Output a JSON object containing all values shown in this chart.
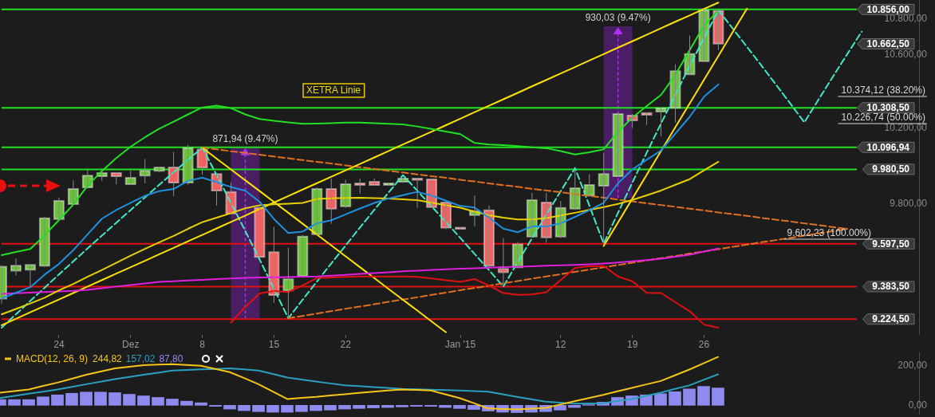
{
  "chart_data": [
    {
      "type": "candlestick",
      "log": true,
      "grid": false,
      "legend": false,
      "categories": [
        null,
        null,
        null,
        null,
        "24",
        null,
        null,
        null,
        null,
        "Dez",
        null,
        null,
        null,
        null,
        "8",
        null,
        null,
        null,
        null,
        "15",
        null,
        null,
        null,
        null,
        "22",
        null,
        null,
        null,
        null,
        null,
        null,
        null,
        "Jan '15",
        null,
        null,
        null,
        null,
        null,
        null,
        "12",
        null,
        null,
        null,
        null,
        "19",
        null,
        null,
        null,
        null,
        "26",
        null,
        null,
        null,
        null,
        null,
        null,
        null,
        null,
        null,
        null,
        null,
        null,
        null,
        null,
        null
      ],
      "ylim": [
        9150,
        10910
      ],
      "yticks": [
        {
          "value": 9800,
          "label": "9.800,00"
        },
        {
          "value": 10200,
          "label": "10.200,00"
        },
        {
          "value": 10600,
          "label": "10.600,00"
        },
        {
          "value": 10800,
          "label": "10.800,00"
        }
      ],
      "ohlc": [
        [
          9325,
          9490,
          9300,
          9482
        ],
        [
          9463,
          9523,
          9439,
          9487
        ],
        [
          9467,
          9495,
          9384,
          9491
        ],
        [
          9487,
          9735,
          9480,
          9727
        ],
        [
          9723,
          9833,
          9720,
          9816
        ],
        [
          9800,
          9923,
          9795,
          9878
        ],
        [
          9886,
          9985,
          9880,
          9948
        ],
        [
          9944,
          9985,
          9920,
          9961
        ],
        [
          9961,
          9965,
          9903,
          9944
        ],
        [
          9903,
          9973,
          9899,
          9936
        ],
        [
          9948,
          10035,
          9907,
          9973
        ],
        [
          9973,
          9994,
          9965,
          9990
        ],
        [
          9990,
          10072,
          9841,
          9911
        ],
        [
          9911,
          10110,
          9899,
          10093
        ],
        [
          10085,
          10101,
          9952,
          9990
        ],
        [
          9956,
          9961,
          9792,
          9870
        ],
        [
          9862,
          9911,
          9745,
          9751
        ],
        null,
        [
          9780,
          9790,
          9525,
          9531
        ],
        [
          9555,
          9683,
          9304,
          9342
        ],
        [
          9365,
          9578,
          9229,
          9420
        ],
        [
          9436,
          9642,
          9430,
          9634
        ],
        [
          9646,
          9886,
          9640,
          9878
        ],
        [
          9878,
          9932,
          9699,
          9776
        ],
        [
          9788,
          9927,
          9780,
          9903
        ],
        [
          9907,
          9932,
          9854,
          9899
        ],
        [
          9915,
          9932,
          9895,
          9899
        ],
        [
          9899,
          9910,
          9895,
          9907
        ],
        [
          9915,
          9935,
          9910,
          9932
        ],
        [
          9932,
          9935,
          9780,
          9928
        ],
        [
          9928,
          9932,
          9780,
          9784
        ],
        [
          9808,
          9812,
          9671,
          9679
        ],
        [
          9679,
          9680,
          9671,
          9675
        ],
        [
          9743,
          9845,
          9687,
          9764
        ],
        [
          9768,
          9792,
          9480,
          9487
        ],
        [
          9471,
          9626,
          9384,
          9455
        ],
        [
          9479,
          9606,
          9475,
          9594
        ],
        [
          9634,
          9858,
          9630,
          9820
        ],
        [
          9808,
          9858,
          9602,
          9630
        ],
        [
          9634,
          9816,
          9626,
          9780
        ],
        [
          9776,
          9973,
          9770,
          9882
        ],
        [
          9845,
          9956,
          9838,
          9899
        ],
        [
          9895,
          10068,
          9598,
          9956
        ],
        [
          9944,
          10280,
          9940,
          10275
        ],
        [
          10267,
          10275,
          10200,
          10241
        ],
        [
          10280,
          10284,
          10216,
          10271
        ],
        [
          10288,
          10310,
          10155,
          10305
        ],
        [
          10309,
          10547,
          10229,
          10509
        ],
        [
          10492,
          10708,
          10488,
          10605
        ],
        [
          10565,
          10856,
          10561,
          10851
        ],
        [
          10847,
          10856,
          10627,
          10662.5
        ],
        null,
        null,
        null,
        null,
        null,
        null,
        null,
        null,
        null,
        null,
        null,
        null,
        null,
        null
      ],
      "colors": [
        "#6cc03c",
        "#6cc03c",
        "#6cc03c",
        "#6cc03c",
        "#6cc03c",
        "#6cc03c",
        "#6cc03c",
        "#6cc03c",
        "#f06262",
        "#6cc03c",
        "#6cc03c",
        "#6cc03c",
        "#f06262",
        "#6cc03c",
        "#f06262",
        "#f06262",
        "#f06262",
        null,
        "#f06262",
        "#f06262",
        "#6cc03c",
        "#6cc03c",
        "#6cc03c",
        "#f06262",
        "#6cc03c",
        "#f06262",
        "#f06262",
        "#6cc03c",
        "#6cc03c",
        "#f06262",
        "#f06262",
        "#f06262",
        "#f06262",
        "#6cc03c",
        "#f06262",
        "#f06262",
        "#6cc03c",
        "#6cc03c",
        "#f06262",
        "#6cc03c",
        "#6cc03c",
        "#6cc03c",
        "#6cc03c",
        "#6cc03c",
        "#f06262",
        "#f06262",
        "#6cc03c",
        "#6cc03c",
        "#6cc03c",
        "#6cc03c",
        "#f06262",
        null,
        null,
        null,
        null,
        null,
        null,
        null,
        null,
        null,
        null,
        null,
        null,
        null,
        null
      ],
      "series": [
        {
          "type": "bar",
          "color": "#4a1e64",
          "base": [
            null,
            null,
            null,
            null,
            null,
            null,
            null,
            null,
            null,
            null,
            null,
            null,
            null,
            null,
            null,
            null,
            null,
            9224.5,
            null,
            null,
            null,
            null,
            null,
            null,
            null,
            null,
            null,
            null,
            null,
            null,
            null,
            null,
            null,
            null,
            null,
            null,
            null,
            null,
            null,
            null,
            null,
            null,
            null,
            9830,
            null,
            null,
            null,
            null,
            null,
            null,
            null,
            null,
            null,
            null,
            null,
            null,
            null,
            null,
            null,
            null,
            null,
            null,
            null,
            null,
            null
          ],
          "values": [
            null,
            null,
            null,
            null,
            null,
            null,
            null,
            null,
            null,
            null,
            null,
            null,
            null,
            null,
            null,
            null,
            null,
            871.94,
            null,
            null,
            null,
            null,
            null,
            null,
            null,
            null,
            null,
            null,
            null,
            null,
            null,
            null,
            null,
            null,
            null,
            null,
            null,
            null,
            null,
            null,
            null,
            null,
            null,
            930.03,
            null,
            null,
            null,
            null,
            null,
            null,
            null,
            null,
            null,
            null,
            null,
            null,
            null,
            null,
            null,
            null,
            null,
            null,
            null,
            null,
            null
          ],
          "value_labels": [
            null,
            null,
            null,
            null,
            null,
            null,
            null,
            null,
            null,
            null,
            null,
            null,
            null,
            null,
            null,
            null,
            null,
            "871,94 (9.47%)",
            null,
            null,
            null,
            null,
            null,
            null,
            null,
            null,
            null,
            null,
            null,
            null,
            null,
            null,
            null,
            null,
            null,
            null,
            null,
            null,
            null,
            null,
            null,
            null,
            null,
            "930,03 (9.47%)",
            null,
            null,
            null,
            null,
            null,
            null,
            null,
            null,
            null,
            null,
            null,
            null,
            null,
            null,
            null,
            null,
            null,
            null,
            null,
            null,
            null
          ]
        },
        {
          "type": "line",
          "color": "#22e022",
          "values": [
            9540,
            9556,
            9571,
            9640,
            9718,
            9797,
            9895,
            9972,
            10040,
            10100,
            10150,
            10196,
            10234,
            10273,
            10311,
            10320,
            10307,
            10273,
            10248,
            10239,
            10230,
            10222,
            10224,
            10226,
            10229,
            10229,
            10226,
            10222,
            10219,
            10208,
            10195,
            10181,
            10167,
            10120,
            10112,
            10108,
            10103,
            10097,
            10092,
            10077,
            10059,
            10070,
            10086,
            10180,
            10256,
            10318,
            10379,
            10489,
            10627,
            10763,
            10851,
            null,
            null,
            null,
            null,
            null,
            null,
            null,
            null,
            null,
            null,
            null,
            null,
            null,
            null
          ]
        },
        {
          "type": "line",
          "color": "#e01010",
          "values": [
            null,
            null,
            null,
            null,
            null,
            null,
            null,
            null,
            null,
            null,
            null,
            null,
            null,
            null,
            null,
            null,
            9207,
            9284,
            9350,
            9362,
            9357,
            9390,
            9426,
            9429,
            9432,
            9434,
            9434,
            9434,
            9434,
            9432,
            9424,
            9415,
            9407,
            9421,
            9389,
            9352,
            9343,
            9345,
            9356,
            9416,
            9476,
            9484,
            9486,
            9434,
            9410,
            9353,
            9352,
            9307,
            9263,
            9198,
            9183,
            null,
            null,
            null,
            null,
            null,
            null,
            null,
            null,
            null,
            null,
            null,
            null,
            null,
            null
          ]
        },
        {
          "type": "line",
          "color": "#1e90e0",
          "values": [
            9325,
            9353,
            9381,
            9443,
            9496,
            9565,
            9645,
            9725,
            9769,
            9806,
            9842,
            9867,
            9878,
            9920,
            9937,
            9913,
            9888,
            9869,
            9812,
            9723,
            9652,
            9659,
            9701,
            9717,
            9747,
            9777,
            9806,
            9829,
            9846,
            9863,
            9844,
            9817,
            9790,
            9782,
            9730,
            9674,
            9656,
            9686,
            9685,
            9701,
            9734,
            9768,
            9806,
            9908,
            9980,
            10031,
            10080,
            10170,
            10260,
            10369,
            10436,
            null,
            null,
            null,
            null,
            null,
            null,
            null,
            null,
            null,
            null,
            null,
            null,
            null,
            null
          ]
        },
        {
          "type": "line",
          "color": "#e8d000",
          "values": [
            9248,
            9274,
            9301,
            9329,
            9365,
            9397,
            9432,
            9466,
            9502,
            9538,
            9572,
            9605,
            9637,
            9673,
            9707,
            9730,
            9753,
            9778,
            9794,
            9799,
            9802,
            9806,
            9826,
            9829,
            9832,
            9833,
            9831,
            9828,
            9824,
            9820,
            9807,
            9794,
            9781,
            9761,
            9742,
            9730,
            9721,
            9721,
            9728,
            9741,
            9755,
            9770,
            9784,
            9801,
            9821,
            9845,
            9870,
            9900,
            9929,
            9975,
            10020,
            null,
            null,
            null,
            null,
            null,
            null,
            null,
            null,
            null,
            null,
            null,
            null,
            null,
            null
          ]
        },
        {
          "type": "line",
          "color": "#e020e0",
          "values": [
            9348,
            9351,
            9354,
            9357,
            9360,
            9363,
            9368,
            9376,
            9384,
            9391,
            9399,
            9407,
            9410,
            9414,
            9417,
            9421,
            9424,
            9427,
            9429,
            9430,
            9431,
            9433,
            9434,
            9438,
            9442,
            9447,
            9451,
            9455,
            9460,
            9463,
            9466,
            9469,
            9472,
            9474,
            9477,
            9480,
            9482,
            9484,
            9487,
            9489,
            9491,
            9494,
            9498,
            9503,
            9509,
            9515,
            9522,
            9532,
            9542,
            9558,
            9573,
            null,
            null,
            null,
            null,
            null,
            null,
            null,
            null,
            null,
            null,
            null,
            null,
            null,
            null
          ]
        },
        {
          "type": "line",
          "color": "#ffe000",
          "values": [
            9195,
            9226,
            9258,
            9289,
            9320,
            9352,
            9384,
            9416,
            9448,
            9480,
            9512,
            9545,
            9577,
            9610,
            9642,
            9675,
            9708,
            9741,
            9775,
            9808,
            9841,
            9875,
            9908,
            9942,
            9975,
            10009,
            10043,
            10077,
            10112,
            10146,
            10180,
            10215,
            10250,
            10285,
            10320,
            10355,
            10390,
            10426,
            10461,
            10497,
            10532,
            10568,
            10604,
            10640,
            10676,
            10712,
            10749,
            10786,
            10822,
            10859,
            10895,
            null,
            null,
            null,
            null,
            null,
            null,
            null,
            null,
            null,
            null,
            null,
            null,
            null,
            null
          ]
        },
        {
          "type": "line",
          "color": "#ffe000",
          "values": [
            null,
            null,
            null,
            null,
            null,
            null,
            null,
            null,
            null,
            null,
            null,
            null,
            null,
            null,
            null,
            null,
            null,
            null,
            null,
            null,
            null,
            null,
            null,
            null,
            null,
            null,
            null,
            null,
            null,
            null,
            null,
            null,
            null,
            null,
            null,
            null,
            null,
            null,
            null,
            null,
            null,
            null,
            9586,
            9706,
            9828,
            9952,
            10077,
            10204,
            10332,
            10462,
            10593,
            10727,
            10861,
            null,
            null,
            null,
            null,
            null,
            null,
            null,
            null,
            null,
            null,
            null,
            null
          ]
        },
        {
          "type": "line",
          "color": "#ffe000",
          "values": [
            null,
            null,
            null,
            null,
            null,
            null,
            null,
            null,
            null,
            null,
            null,
            null,
            null,
            null,
            10095,
            10037,
            9980,
            9923,
            9867,
            9811,
            9755,
            9699,
            9644,
            9589,
            9534,
            9480,
            9426,
            9372,
            9319,
            9266,
            9213,
            9161,
            null,
            null,
            null,
            null,
            null,
            null,
            null,
            null,
            null,
            null,
            null,
            null,
            null,
            null,
            null,
            null,
            null,
            null,
            null,
            null,
            null,
            null,
            null,
            null,
            null,
            null,
            null,
            null,
            null,
            null,
            null,
            null,
            null
          ]
        },
        {
          "type": "line",
          "color": "#e07020",
          "line_style": "dashed",
          "values": [
            null,
            null,
            null,
            null,
            null,
            null,
            null,
            null,
            null,
            null,
            null,
            null,
            null,
            null,
            10095,
            10086,
            10076,
            10067,
            10058,
            10048,
            10039,
            10029,
            10020,
            10011,
            10001,
            9992,
            9982,
            9973,
            9964,
            9954,
            9945,
            9936,
            9926,
            9917,
            9907,
            9898,
            9889,
            9879,
            9870,
            9861,
            9851,
            9842,
            9833,
            9823,
            9814,
            9804,
            9795,
            9786,
            9776,
            9767,
            9757,
            9748,
            9739,
            9729,
            9720,
            9711,
            9701,
            9692,
            9682,
            9673,
            null,
            null,
            null,
            null,
            null
          ]
        },
        {
          "type": "line",
          "color": "#e07020",
          "line_style": "dashed",
          "values": [
            null,
            null,
            null,
            null,
            null,
            null,
            null,
            null,
            null,
            null,
            null,
            null,
            null,
            null,
            null,
            null,
            null,
            null,
            null,
            null,
            9229,
            9240,
            9252,
            9263,
            9275,
            9286,
            9297,
            9309,
            9320,
            9331,
            9343,
            9354,
            9366,
            9377,
            9388,
            9400,
            9411,
            9423,
            9434,
            9445,
            9457,
            9468,
            9479,
            9491,
            9502,
            9514,
            9525,
            9536,
            9548,
            9559,
            9570,
            9582,
            9593,
            9605,
            9616,
            9627,
            9639,
            9650,
            9661,
            9673,
            null,
            null,
            null,
            null,
            null
          ]
        },
        {
          "type": "line",
          "color": "#40e8c8",
          "line_style": "dashed",
          "values": [
            9183,
            9248,
            9313,
            9378,
            9444,
            9509,
            9574,
            9639,
            9704,
            9769,
            9834,
            9900,
            9965,
            10030,
            10095,
            9951,
            9806,
            9662,
            9518,
            9373,
            9229,
            9319,
            9409,
            9499,
            9589,
            9680,
            9770,
            9860,
            9950,
            9869,
            9788,
            9707,
            9627,
            9546,
            9465,
            9384,
            9505,
            9625,
            9746,
            9866,
            9987,
            9793,
            9598,
            9755,
            9911,
            10068,
            10224,
            10381,
            10538,
            10694,
            10851,
            10748,
            10644,
            10541,
            10437,
            10334,
            10230,
            10355,
            10480,
            10605,
            10730,
            null,
            null,
            null,
            null
          ]
        }
      ],
      "ref_lines": [
        {
          "axis": "y",
          "value": 10856,
          "label": "10.856,00",
          "color": "#22e022"
        },
        {
          "axis": "y",
          "value": 10308.5,
          "label": "10.308,50",
          "color": "#22e022"
        },
        {
          "axis": "y",
          "value": 10096.94,
          "label": "10.096,94",
          "color": "#22e022"
        },
        {
          "axis": "y",
          "value": 9980.5,
          "label": "9.980,50",
          "color": "#22e022"
        },
        {
          "axis": "y",
          "value": 9597.5,
          "label": "9.597,50",
          "color": "#e01010"
        },
        {
          "axis": "y",
          "value": 9383.5,
          "label": "9.383,50",
          "color": "#e01010"
        },
        {
          "axis": "y",
          "value": 9224.5,
          "label": "9.224,50",
          "color": "#e01010"
        }
      ],
      "annotations": [
        "XETRA Linie",
        "10.374,12 (38.20%)",
        "10.226,74 (50.00%)",
        "9.602,23 (100.00%)",
        "10.662,50"
      ]
    },
    {
      "type": "line",
      "title": "MACD(12, 26, 9)",
      "grid": false,
      "legend": false,
      "tick_labels": "y",
      "categories": [
        null,
        null,
        null,
        null,
        null,
        null,
        null,
        null,
        null,
        null,
        null,
        null,
        null,
        null,
        null,
        null,
        null,
        null,
        null,
        null,
        null,
        null,
        null,
        null,
        null,
        null,
        null,
        null,
        null,
        null,
        null,
        null,
        null,
        null,
        null,
        null,
        null,
        null,
        null,
        null,
        null,
        null,
        null,
        null,
        null,
        null,
        null,
        null,
        null,
        null,
        null,
        null,
        null,
        null,
        null,
        null,
        null,
        null,
        null,
        null,
        null,
        null,
        null,
        null,
        null
      ],
      "ylim": [
        -43,
        268
      ],
      "yticks": [
        {
          "value": 0,
          "label": "0,00"
        },
        {
          "value": 200,
          "label": "200,00"
        }
      ],
      "series": [
        {
          "type": "line",
          "color": "#f5c518",
          "values": [
            64,
            72,
            80,
            98,
            115,
            135,
            155,
            171,
            187,
            195,
            203,
            206,
            208,
            204,
            200,
            184,
            168,
            138,
            107,
            70,
            32,
            38,
            43,
            50,
            56,
            63,
            69,
            75,
            80,
            78,
            75,
            56,
            37,
            11,
            -16,
            -19,
            -21,
            -17,
            -13,
            4,
            21,
            37,
            53,
            71,
            88,
            106,
            123,
            152,
            181,
            213,
            245,
            null,
            null,
            null,
            null,
            null,
            null,
            null,
            null,
            null,
            null,
            null,
            null,
            null,
            null
          ]
        },
        {
          "type": "line",
          "color": "#2a9fc0",
          "values": [
            37,
            48,
            59,
            69,
            80,
            93,
            107,
            120,
            133,
            144,
            155,
            165,
            176,
            179,
            182,
            184,
            187,
            182,
            176,
            159,
            141,
            131,
            121,
            111,
            101,
            97,
            92,
            88,
            83,
            81,
            79,
            77,
            75,
            72,
            69,
            56,
            43,
            31,
            19,
            14,
            8,
            10,
            11,
            22,
            32,
            48,
            64,
            83,
            101,
            129,
            157,
            null,
            null,
            null,
            null,
            null,
            null,
            null,
            null,
            null,
            null,
            null,
            null,
            null,
            null
          ]
        },
        {
          "type": "bar",
          "color": "#8f8af0",
          "values": [
            29,
            29,
            29,
            43,
            53,
            61,
            67,
            67,
            64,
            56,
            48,
            40,
            32,
            21,
            13,
            -5,
            -19,
            -27,
            -32,
            -35,
            -35,
            -32,
            -27,
            -24,
            -19,
            -16,
            -13,
            -11,
            -8,
            -5,
            -5,
            -11,
            -16,
            -21,
            -29,
            -35,
            -37,
            -35,
            -32,
            -24,
            -11,
            3,
            16,
            40,
            48,
            53,
            59,
            69,
            83,
            96,
            88,
            null,
            null,
            null,
            null,
            null,
            null,
            null,
            null,
            null,
            null,
            null,
            null,
            null,
            null
          ]
        }
      ],
      "annotations": [
        "244,82",
        "157,02",
        "87,80"
      ]
    }
  ]
}
